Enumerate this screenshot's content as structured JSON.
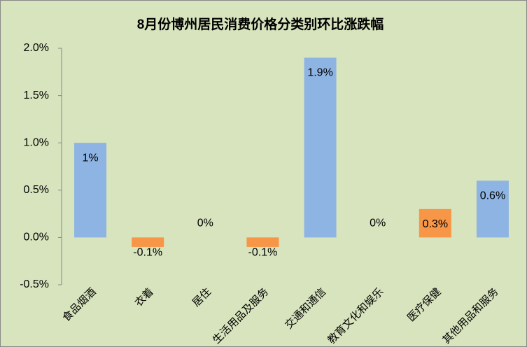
{
  "chart_data": {
    "type": "bar",
    "title": "8月份博州居民消费价格分类别环比涨跌幅",
    "categories": [
      "食品烟酒",
      "衣着",
      "居住",
      "生活用品及服务",
      "交通和通信",
      "教育文化和娱乐",
      "医疗保健",
      "其他用品和服务"
    ],
    "values": [
      1,
      -0.1,
      0,
      -0.1,
      1.9,
      0,
      0.3,
      0.6
    ],
    "value_labels": [
      "1%",
      "-0.1%",
      "0%",
      "-0.1%",
      "1.9%",
      "0%",
      "0.3%",
      "0.6%"
    ],
    "colors": [
      "#8eb4e3",
      "#f79646",
      "#8eb4e3",
      "#f79646",
      "#8eb4e3",
      "#8eb4e3",
      "#f79646",
      "#8eb4e3"
    ],
    "ylim": [
      -0.5,
      2.0
    ],
    "yticks": [
      {
        "value": -0.5,
        "label": "-0.5%"
      },
      {
        "value": 0,
        "label": "0.0%"
      },
      {
        "value": 0.5,
        "label": "0.5%"
      },
      {
        "value": 1.0,
        "label": "1.0%"
      },
      {
        "value": 1.5,
        "label": "1.5%"
      },
      {
        "value": 2.0,
        "label": "2.0%"
      }
    ],
    "grid": false
  }
}
